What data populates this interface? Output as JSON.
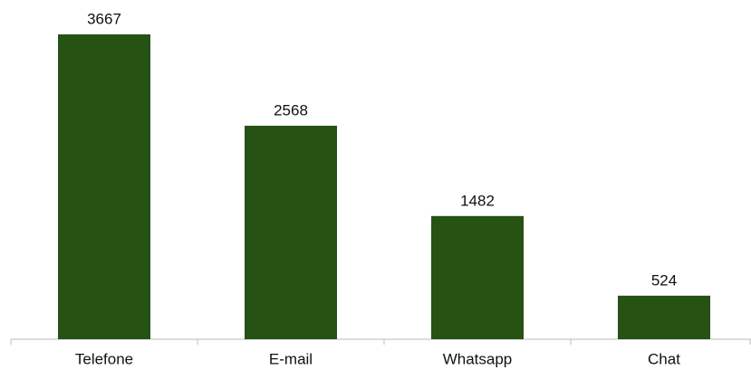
{
  "chart_data": {
    "type": "bar",
    "categories": [
      "Telefone",
      "E-mail",
      "Whatsapp",
      "Chat"
    ],
    "values": [
      3667,
      2568,
      1482,
      524
    ],
    "color": "#265214"
  }
}
